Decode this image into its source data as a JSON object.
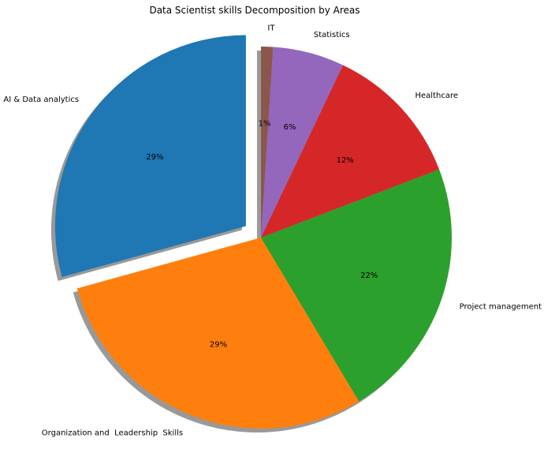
{
  "chart_data": {
    "type": "pie",
    "title": "Data Scientist skills Decomposition by Areas",
    "slices": [
      {
        "label": "AI & Data analytics",
        "value": 29,
        "pct_label": "29%",
        "color": "#1f77b4",
        "exploded": true
      },
      {
        "label": "Organization and  Leadership  Skills",
        "value": 29,
        "pct_label": "29%",
        "color": "#ff7f0e",
        "exploded": false
      },
      {
        "label": "Project management",
        "value": 22,
        "pct_label": "22%",
        "color": "#2ca02c",
        "exploded": false
      },
      {
        "label": "Healthcare",
        "value": 12,
        "pct_label": "12%",
        "color": "#d62728",
        "exploded": false
      },
      {
        "label": "Statistics",
        "value": 6,
        "pct_label": "6%",
        "color": "#9467bd",
        "exploded": false
      },
      {
        "label": "IT",
        "value": 1,
        "pct_label": "1%",
        "color": "#8c564b",
        "exploded": false
      }
    ],
    "start_angle_deg": 90,
    "direction": "counterclockwise",
    "shadow": true
  }
}
